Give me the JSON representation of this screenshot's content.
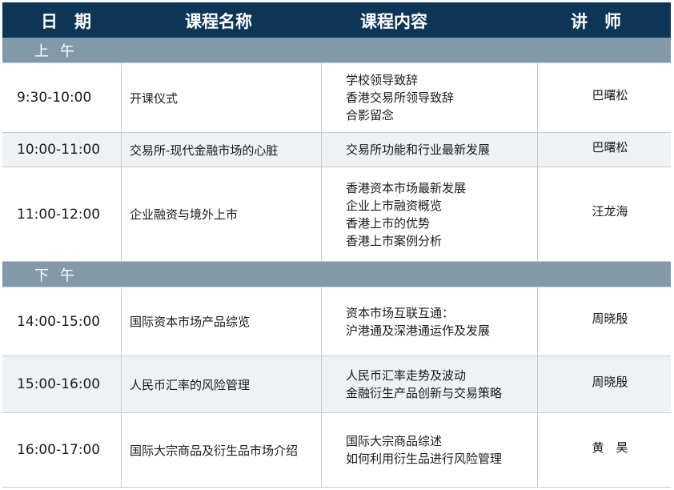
{
  "header": {
    "date": "日　期",
    "course": "课程名称",
    "content": "课程内容",
    "lecturer": "讲　师"
  },
  "sections": [
    {
      "label": "上午",
      "rows": [
        {
          "time": "9:30-10:00",
          "course": "开课仪式",
          "content": [
            "学校领导致辞",
            "香港交易所领导致辞",
            "合影留念"
          ],
          "lecturer": "巴曙松"
        },
        {
          "time": "10:00-11:00",
          "course": "交易所-现代金融市场的心脏",
          "content": [
            "交易所功能和行业最新发展"
          ],
          "lecturer": "巴曙松"
        },
        {
          "time": "11:00-12:00",
          "course": "企业融资与境外上市",
          "content": [
            "香港资本市场最新发展",
            "企业上市融资概览",
            "香港上市的优势",
            "香港上市案例分析"
          ],
          "lecturer": "汪龙海"
        }
      ]
    },
    {
      "label": "下午",
      "rows": [
        {
          "time": "14:00-15:00",
          "course": "国际资本市场产品综览",
          "content": [
            "资本市场互联互通：",
            "沪港通及深港通运作及发展"
          ],
          "lecturer": "周晓殷"
        },
        {
          "time": "15:00-16:00",
          "course": "人民币汇率的风险管理",
          "content": [
            "人民币汇率走势及波动",
            "金融衍生产品创新与交易策略"
          ],
          "lecturer": "周晓殷"
        },
        {
          "time": "16:00-17:00",
          "course": "国际大宗商品及衍生品市场介绍",
          "content": [
            "国际大宗商品综述",
            "如何利用衍生品进行风险管理"
          ],
          "lecturer": "黄　昊"
        }
      ]
    }
  ],
  "colors": {
    "header": "#0d3556",
    "section": "#8299aa",
    "alt_row": "#eef2f4"
  }
}
